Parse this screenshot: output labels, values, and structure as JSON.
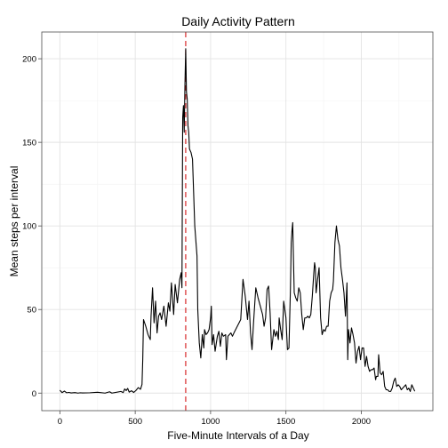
{
  "chart_data": {
    "type": "line",
    "title": "Daily Activity Pattern",
    "xlabel": "Five-Minute Intervals of a Day",
    "ylabel": "Mean steps per interval",
    "xlim": [
      -120,
      2475
    ],
    "ylim": [
      -10.5,
      216
    ],
    "xticks": [
      0,
      500,
      1000,
      1500,
      2000
    ],
    "yticks": [
      0,
      50,
      100,
      150,
      200
    ],
    "grid": true,
    "reference_line": {
      "x": 835,
      "color": "#d62728",
      "style": "dashed"
    },
    "series": [
      {
        "color": "#000000",
        "points": [
          [
            0,
            1.7
          ],
          [
            15,
            0.3
          ],
          [
            30,
            1.2
          ],
          [
            45,
            0.2
          ],
          [
            60,
            0.4
          ],
          [
            75,
            0.1
          ],
          [
            100,
            0.3
          ],
          [
            120,
            0
          ],
          [
            135,
            0.2
          ],
          [
            150,
            0.1
          ],
          [
            200,
            0.2
          ],
          [
            250,
            0.5
          ],
          [
            300,
            0
          ],
          [
            330,
            0.8
          ],
          [
            345,
            0
          ],
          [
            405,
            1.0
          ],
          [
            420,
            0.3
          ],
          [
            430,
            2.5
          ],
          [
            440,
            1.5
          ],
          [
            450,
            2.8
          ],
          [
            460,
            0.6
          ],
          [
            475,
            1.4
          ],
          [
            490,
            0.4
          ],
          [
            505,
            1.6
          ],
          [
            520,
            3.3
          ],
          [
            535,
            2.3
          ],
          [
            545,
            5.2
          ],
          [
            550,
            20
          ],
          [
            555,
            44
          ],
          [
            570,
            40
          ],
          [
            585,
            35
          ],
          [
            600,
            32
          ],
          [
            605,
            46
          ],
          [
            615,
            63
          ],
          [
            625,
            42
          ],
          [
            635,
            55
          ],
          [
            645,
            36
          ],
          [
            655,
            46
          ],
          [
            665,
            48
          ],
          [
            675,
            44
          ],
          [
            690,
            52
          ],
          [
            705,
            40
          ],
          [
            720,
            54
          ],
          [
            730,
            49
          ],
          [
            740,
            66
          ],
          [
            755,
            47
          ],
          [
            765,
            65
          ],
          [
            780,
            54
          ],
          [
            795,
            68
          ],
          [
            805,
            72
          ],
          [
            810,
            63
          ],
          [
            815,
            165
          ],
          [
            820,
            172
          ],
          [
            825,
            156
          ],
          [
            830,
            185
          ],
          [
            835,
            206
          ],
          [
            840,
            180
          ],
          [
            845,
            176
          ],
          [
            850,
            160
          ],
          [
            855,
            156
          ],
          [
            860,
            146
          ],
          [
            870,
            144
          ],
          [
            880,
            140
          ],
          [
            895,
            100
          ],
          [
            910,
            82
          ],
          [
            915,
            50
          ],
          [
            925,
            30
          ],
          [
            935,
            21
          ],
          [
            945,
            35
          ],
          [
            955,
            27
          ],
          [
            960,
            38
          ],
          [
            970,
            35
          ],
          [
            980,
            36
          ],
          [
            990,
            38
          ],
          [
            1000,
            45
          ],
          [
            1005,
            52
          ],
          [
            1010,
            29
          ],
          [
            1020,
            35
          ],
          [
            1030,
            25
          ],
          [
            1045,
            34
          ],
          [
            1055,
            37
          ],
          [
            1065,
            28
          ],
          [
            1075,
            36
          ],
          [
            1085,
            34
          ],
          [
            1100,
            35
          ],
          [
            1105,
            20
          ],
          [
            1115,
            34
          ],
          [
            1125,
            35
          ],
          [
            1135,
            36
          ],
          [
            1145,
            34
          ],
          [
            1155,
            36
          ],
          [
            1200,
            44
          ],
          [
            1215,
            68
          ],
          [
            1230,
            58
          ],
          [
            1245,
            44
          ],
          [
            1255,
            55
          ],
          [
            1265,
            36
          ],
          [
            1275,
            26
          ],
          [
            1285,
            42
          ],
          [
            1300,
            63
          ],
          [
            1315,
            57
          ],
          [
            1330,
            52
          ],
          [
            1345,
            47
          ],
          [
            1355,
            40
          ],
          [
            1365,
            45
          ],
          [
            1375,
            62
          ],
          [
            1385,
            64
          ],
          [
            1395,
            48
          ],
          [
            1405,
            26
          ],
          [
            1420,
            38
          ],
          [
            1430,
            34
          ],
          [
            1440,
            37
          ],
          [
            1450,
            32
          ],
          [
            1455,
            45
          ],
          [
            1465,
            38
          ],
          [
            1475,
            32
          ],
          [
            1485,
            55
          ],
          [
            1500,
            45
          ],
          [
            1510,
            26
          ],
          [
            1520,
            27
          ],
          [
            1530,
            63
          ],
          [
            1535,
            90
          ],
          [
            1540,
            97
          ],
          [
            1545,
            102
          ],
          [
            1550,
            80
          ],
          [
            1555,
            60
          ],
          [
            1565,
            57
          ],
          [
            1575,
            55
          ],
          [
            1585,
            63
          ],
          [
            1595,
            60
          ],
          [
            1605,
            47
          ],
          [
            1615,
            38
          ],
          [
            1625,
            45
          ],
          [
            1635,
            45
          ],
          [
            1645,
            46
          ],
          [
            1655,
            45
          ],
          [
            1665,
            47
          ],
          [
            1675,
            58
          ],
          [
            1685,
            72
          ],
          [
            1690,
            78
          ],
          [
            1695,
            75
          ],
          [
            1700,
            60
          ],
          [
            1710,
            68
          ],
          [
            1720,
            75
          ],
          [
            1730,
            45
          ],
          [
            1740,
            35
          ],
          [
            1750,
            38
          ],
          [
            1760,
            37
          ],
          [
            1770,
            40
          ],
          [
            1780,
            40
          ],
          [
            1790,
            55
          ],
          [
            1800,
            60
          ],
          [
            1810,
            62
          ],
          [
            1815,
            67
          ],
          [
            1825,
            90
          ],
          [
            1835,
            100
          ],
          [
            1845,
            92
          ],
          [
            1855,
            88
          ],
          [
            1865,
            75
          ],
          [
            1875,
            68
          ],
          [
            1885,
            60
          ],
          [
            1895,
            46
          ],
          [
            1905,
            66
          ],
          [
            1910,
            20
          ],
          [
            1915,
            38
          ],
          [
            1925,
            30
          ],
          [
            1935,
            39
          ],
          [
            1945,
            35
          ],
          [
            1955,
            30
          ],
          [
            1965,
            18
          ],
          [
            1975,
            25
          ],
          [
            1985,
            28
          ],
          [
            1995,
            20
          ],
          [
            2005,
            27
          ],
          [
            2015,
            27
          ],
          [
            2025,
            16
          ],
          [
            2035,
            22
          ],
          [
            2045,
            16
          ],
          [
            2055,
            13
          ],
          [
            2065,
            14
          ],
          [
            2075,
            14
          ],
          [
            2085,
            15
          ],
          [
            2095,
            8
          ],
          [
            2100,
            10
          ],
          [
            2110,
            10
          ],
          [
            2115,
            23
          ],
          [
            2125,
            12
          ],
          [
            2135,
            11
          ],
          [
            2145,
            13
          ],
          [
            2155,
            4
          ],
          [
            2165,
            2
          ],
          [
            2175,
            2
          ],
          [
            2185,
            1
          ],
          [
            2195,
            1
          ],
          [
            2205,
            3
          ],
          [
            2215,
            7
          ],
          [
            2225,
            9
          ],
          [
            2235,
            4
          ],
          [
            2245,
            5
          ],
          [
            2255,
            4
          ],
          [
            2265,
            2
          ],
          [
            2275,
            3
          ],
          [
            2285,
            4
          ],
          [
            2295,
            5
          ],
          [
            2305,
            2
          ],
          [
            2315,
            3
          ],
          [
            2325,
            1
          ],
          [
            2335,
            5
          ],
          [
            2345,
            3
          ],
          [
            2355,
            1.1
          ]
        ]
      }
    ]
  }
}
